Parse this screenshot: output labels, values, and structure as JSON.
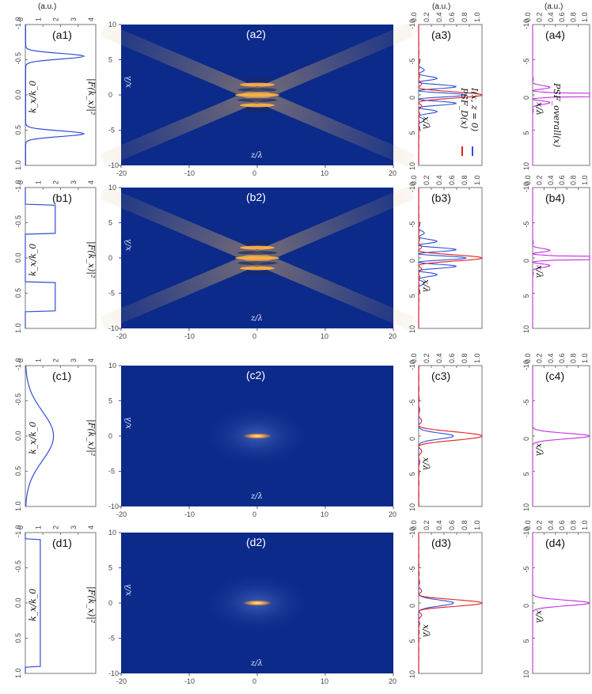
{
  "unit_label": "(a.u.)",
  "spectrum_label": "|F(k_x)|²",
  "kx_label": "k_x/k_0",
  "x_label": "x/λ",
  "z_label": "z/λ",
  "legend": {
    "I": "I(x, z = 0)",
    "PSF_D": "PSF_D(x)",
    "PSF_overall": "PSF_overall(x)"
  },
  "colors": {
    "blue": "#2f4fd6",
    "red": "#e02020",
    "magenta": "#c030e0",
    "field_bg": "#0b2a8a",
    "field_hot": "#ffc060"
  },
  "axes": {
    "spectrum_h_ticks": [
      "0",
      "1",
      "2",
      "3",
      "4"
    ],
    "spectrum_v_ticks": [
      "-1.0",
      "-0.5",
      "0.0",
      "0.5",
      "1.0"
    ],
    "field_z_ticks": [
      "-20",
      "-10",
      "0",
      "10",
      "20"
    ],
    "field_x_ticks": [
      "10",
      "5",
      "0",
      "-5",
      "-10"
    ],
    "psf_h_ticks": [
      "0.0",
      "0.2",
      "0.4",
      "0.6",
      "0.8",
      "1.0"
    ],
    "psf_v_ticks": [
      "-10",
      "-5",
      "0",
      "5",
      "10"
    ]
  },
  "rows": [
    {
      "labels": [
        "(a1)",
        "(a2)",
        "(a3)",
        "(a4)"
      ],
      "spectrum": "two-peaks"
    },
    {
      "labels": [
        "(b1)",
        "(b2)",
        "(b3)",
        "(b4)"
      ],
      "spectrum": "two-rects"
    },
    {
      "labels": [
        "(c1)",
        "(c2)",
        "(c3)",
        "(c4)"
      ],
      "spectrum": "gaussian"
    },
    {
      "labels": [
        "(d1)",
        "(d2)",
        "(d3)",
        "(d4)"
      ],
      "spectrum": "flat"
    }
  ]
}
